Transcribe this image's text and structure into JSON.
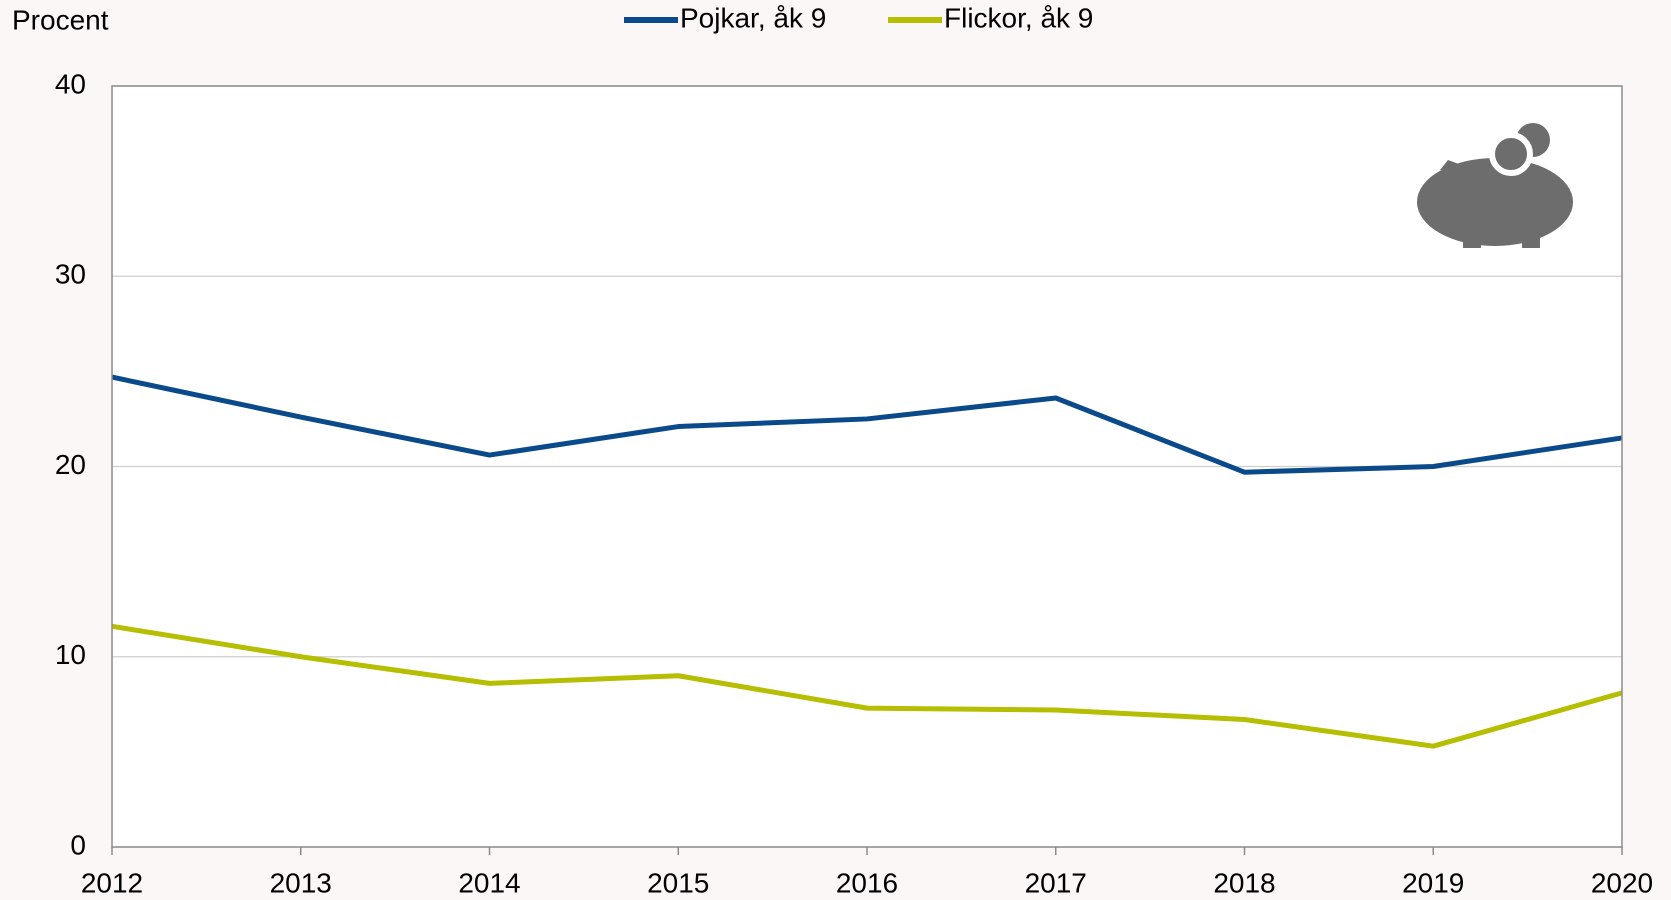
{
  "chart_data": {
    "type": "line",
    "y_label": "Procent",
    "x": [
      2012,
      2013,
      2014,
      2015,
      2016,
      2017,
      2018,
      2019,
      2020
    ],
    "xlim": [
      2012,
      2020
    ],
    "xticks": [
      2012,
      2013,
      2014,
      2015,
      2016,
      2017,
      2018,
      2019,
      2020
    ],
    "ylim": [
      0,
      40
    ],
    "yticks": [
      0,
      10,
      20,
      30,
      40
    ],
    "grid": true,
    "legend": "top",
    "series": [
      {
        "name": "Pojkar, åk 9",
        "color": "#0b4a8a",
        "values": [
          24.7,
          22.6,
          20.6,
          22.1,
          22.5,
          23.6,
          19.7,
          20.0,
          21.5
        ]
      },
      {
        "name": "Flickor, åk 9",
        "color": "#b5be00",
        "values": [
          11.6,
          10.0,
          8.6,
          9.0,
          7.3,
          7.2,
          6.7,
          5.3,
          8.1
        ]
      }
    ]
  }
}
